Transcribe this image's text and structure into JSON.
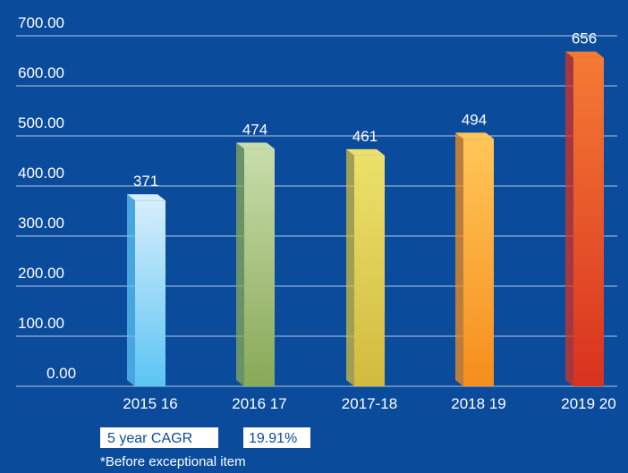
{
  "chart_data": {
    "type": "bar",
    "categories": [
      "2015 16",
      "2016 17",
      "2017-18",
      "2018 19",
      "2019 20"
    ],
    "values": [
      371,
      474,
      461,
      494,
      656
    ],
    "colors": [
      [
        "#d6eefc",
        "#5cc4f3"
      ],
      [
        "#c8dcaa",
        "#88a957"
      ],
      [
        "#ece06a",
        "#d2bb3e"
      ],
      [
        "#ffc657",
        "#f68d1c"
      ],
      [
        "#f47a34",
        "#d9321f"
      ]
    ],
    "ylim": [
      0,
      700
    ],
    "yticks": [
      {
        "value": 0,
        "label": "0.00"
      },
      {
        "value": 100,
        "label": "100.00"
      },
      {
        "value": 200,
        "label": "200.00"
      },
      {
        "value": 300,
        "label": "300.00"
      },
      {
        "value": 400,
        "label": "400.00"
      },
      {
        "value": 500,
        "label": "500.00"
      },
      {
        "value": 600,
        "label": "600.00"
      },
      {
        "value": 700,
        "label": "700.00"
      }
    ],
    "grid": true,
    "annotations": {
      "cagr_label": "5 year CAGR",
      "cagr_value": "19.91%",
      "footnote": "*Before exceptional item"
    }
  }
}
